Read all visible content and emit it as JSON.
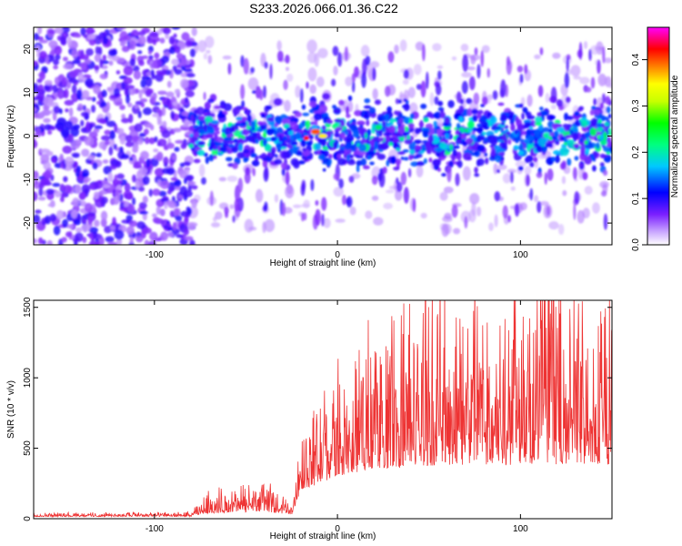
{
  "chart_data": [
    {
      "type": "heatmap",
      "title": "S233.2026.066.01.36.C22",
      "xlabel": "Height of straight line (km)",
      "ylabel": "Frequency (Hz)",
      "xlim": [
        -166,
        150
      ],
      "ylim": [
        -25,
        25
      ],
      "x_ticks": [
        -100,
        0,
        100
      ],
      "y_ticks": [
        20,
        10,
        0,
        -10,
        -20
      ],
      "colorbar": {
        "label": "Normalized spectral amplitude",
        "range": [
          0,
          0.47
        ],
        "ticks": [
          "0.0",
          "0.1",
          "0.2",
          "0.3",
          "0.4"
        ],
        "colors": [
          "#ffffff",
          "#9b30ff",
          "#0000ff",
          "#00ffff",
          "#00ff00",
          "#ffff00",
          "#ff8000",
          "#ff0000",
          "#ff00ff"
        ]
      },
      "regions": [
        {
          "x_range": [
            -166,
            -80
          ],
          "freq_range": [
            -25,
            25
          ],
          "amplitude": "low (purple, broadband)"
        },
        {
          "x_range": [
            -80,
            150
          ],
          "freq_range": [
            -8,
            8
          ],
          "amplitude": "moderate (blue/cyan band)"
        },
        {
          "x": -12,
          "freq": 1,
          "amplitude": 0.47,
          "note": "peak"
        }
      ]
    },
    {
      "type": "line",
      "xlabel": "Height of straight line (km)",
      "ylabel": "SNR (10 * v/v)",
      "xlim": [
        -166,
        150
      ],
      "ylim": [
        0,
        1550
      ],
      "x_ticks": [
        -100,
        0,
        100
      ],
      "y_ticks": [
        0,
        500,
        1000,
        1500
      ],
      "series": [
        {
          "name": "SNR",
          "color": "#ee3333",
          "envelope": [
            {
              "x": -166,
              "base": 15,
              "spread": 20
            },
            {
              "x": -80,
              "base": 15,
              "spread": 25
            },
            {
              "x": -70,
              "base": 40,
              "spread": 120
            },
            {
              "x": -40,
              "base": 50,
              "spread": 150
            },
            {
              "x": -25,
              "base": 30,
              "spread": 60
            },
            {
              "x": -20,
              "base": 200,
              "spread": 300
            },
            {
              "x": 0,
              "base": 300,
              "spread": 550
            },
            {
              "x": 20,
              "base": 350,
              "spread": 800
            },
            {
              "x": 60,
              "base": 380,
              "spread": 950
            },
            {
              "x": 100,
              "base": 380,
              "spread": 1050
            },
            {
              "x": 150,
              "base": 380,
              "spread": 900
            }
          ],
          "peak": {
            "x": 118,
            "y": 1550
          }
        }
      ]
    }
  ]
}
